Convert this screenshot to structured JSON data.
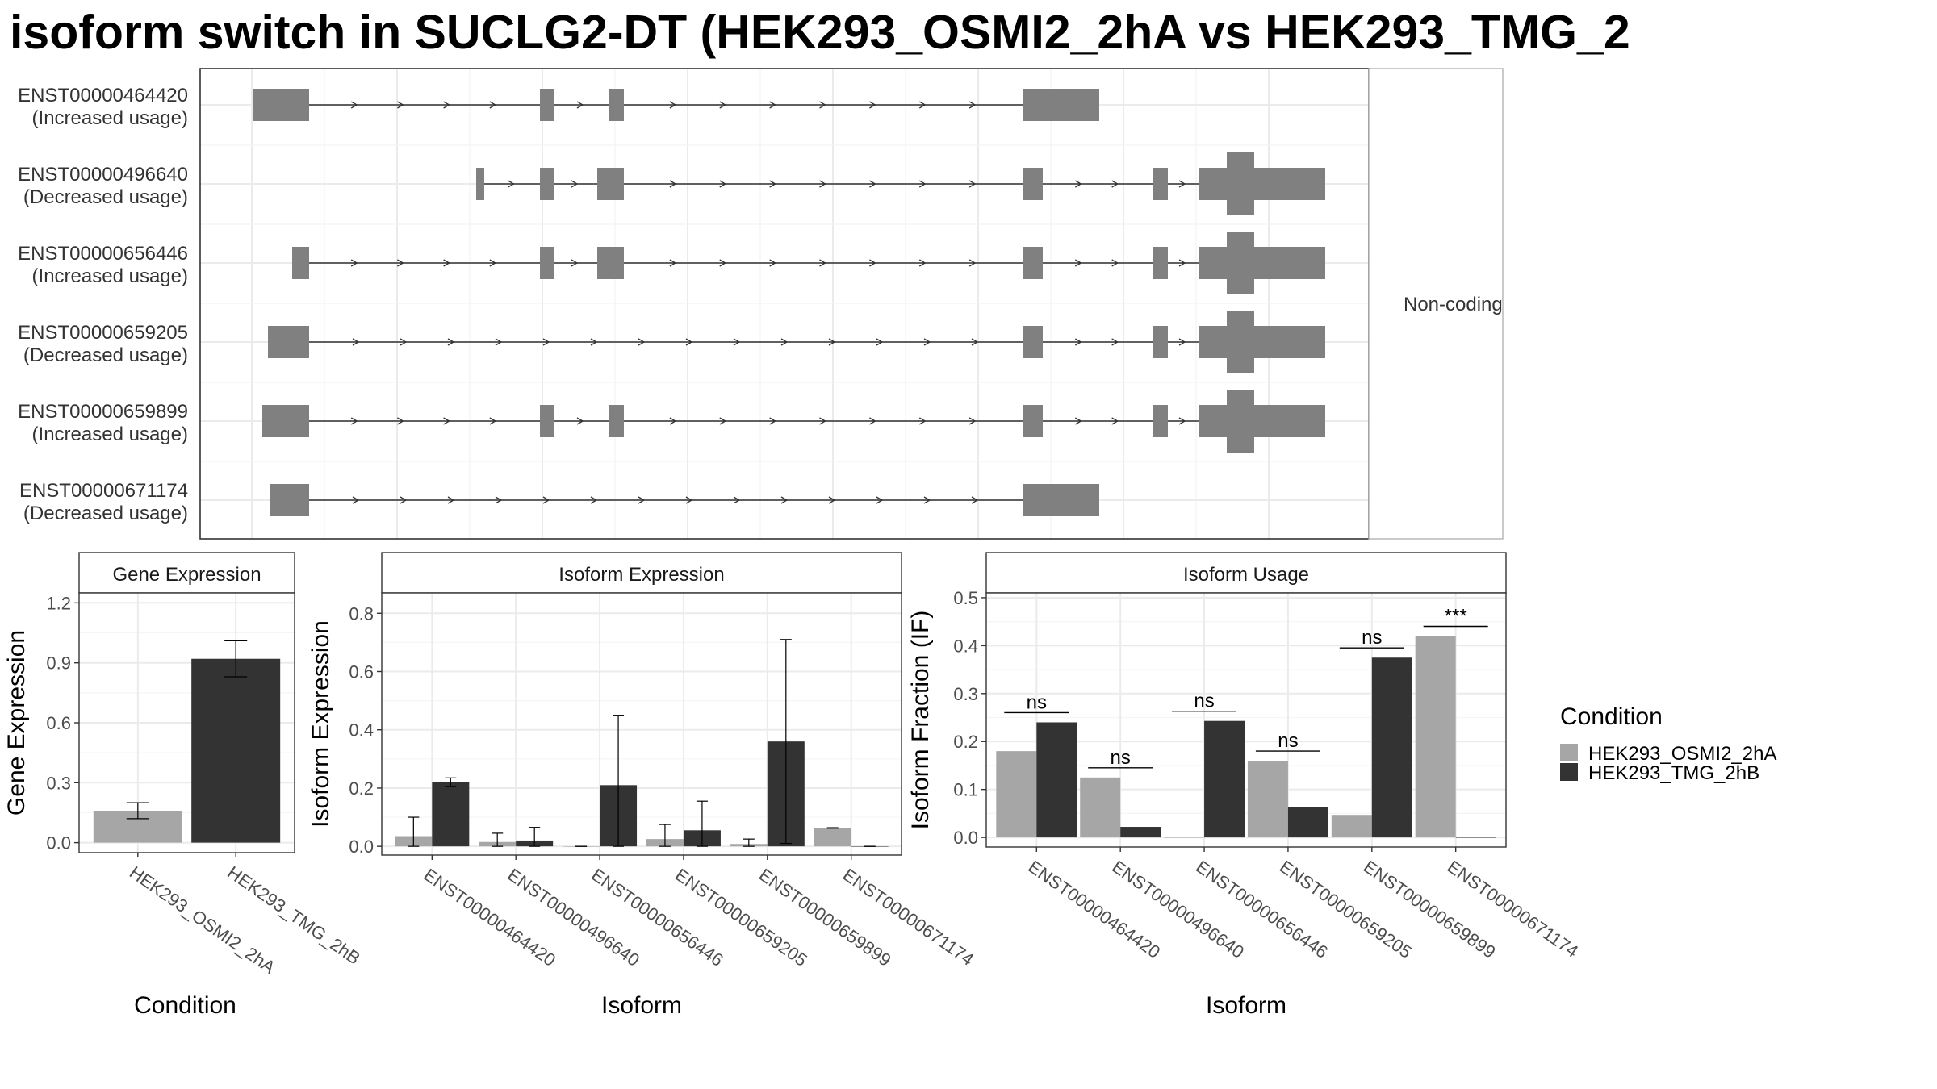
{
  "title": "isoform switch in SUCLG2-DT (HEK293_OSMI2_2hA vs HEK293_TMG_2",
  "colors": {
    "cond1": "#a6a6a6",
    "cond2": "#333333",
    "exon": "#808080"
  },
  "transcripts": {
    "strip_label": "Non-coding",
    "items": [
      {
        "id": "ENST00000464420",
        "usage": "(Increased usage)"
      },
      {
        "id": "ENST00000496640",
        "usage": "(Decreased usage)"
      },
      {
        "id": "ENST00000656446",
        "usage": "(Increased usage)"
      },
      {
        "id": "ENST00000659205",
        "usage": "(Decreased usage)"
      },
      {
        "id": "ENST00000659899",
        "usage": "(Increased usage)"
      },
      {
        "id": "ENST00000671174",
        "usage": "(Decreased usage)"
      }
    ]
  },
  "legend": {
    "title": "Condition",
    "items": [
      "HEK293_OSMI2_2hA",
      "HEK293_TMG_2hB"
    ]
  },
  "chart_data": [
    {
      "type": "bar",
      "title": "Gene Expression",
      "xlabel": "Condition",
      "ylabel": "Gene Expression",
      "categories": [
        "HEK293_OSMI2_2hA",
        "HEK293_TMG_2hB"
      ],
      "values": [
        0.16,
        0.92
      ],
      "error_low": [
        0.12,
        0.83
      ],
      "error_high": [
        0.2,
        1.01
      ],
      "ylim": [
        -0.05,
        1.25
      ],
      "yticks": [
        "0.0",
        "0.3",
        "0.6",
        "0.9",
        "1.2"
      ],
      "legend": "right",
      "grid": true
    },
    {
      "type": "bar",
      "title": "Isoform Expression",
      "xlabel": "Isoform",
      "ylabel": "Isoform Expression",
      "categories": [
        "ENST00000464420",
        "ENST00000496640",
        "ENST00000656446",
        "ENST00000659205",
        "ENST00000659899",
        "ENST00000671174"
      ],
      "series": [
        {
          "name": "HEK293_OSMI2_2hA",
          "values": [
            0.035,
            0.015,
            0.0,
            0.025,
            0.008,
            0.063
          ],
          "error_low": [
            0.0,
            0.0,
            0.0,
            0.0,
            0.0,
            0.062
          ],
          "error_high": [
            0.1,
            0.045,
            0.0,
            0.075,
            0.025,
            0.064
          ]
        },
        {
          "name": "HEK293_TMG_2hB",
          "values": [
            0.22,
            0.02,
            0.21,
            0.055,
            0.36,
            0.0
          ],
          "error_low": [
            0.205,
            0.0,
            0.0,
            0.0,
            0.01,
            0.0
          ],
          "error_high": [
            0.235,
            0.065,
            0.45,
            0.155,
            0.71,
            0.0
          ]
        }
      ],
      "ylim": [
        -0.03,
        0.87
      ],
      "yticks": [
        "0.0",
        "0.2",
        "0.4",
        "0.6",
        "0.8"
      ],
      "grid": true
    },
    {
      "type": "bar",
      "title": "Isoform Usage",
      "xlabel": "Isoform",
      "ylabel": "Isoform Fraction (IF)",
      "categories": [
        "ENST00000464420",
        "ENST00000496640",
        "ENST00000656446",
        "ENST00000659205",
        "ENST00000659899",
        "ENST00000671174"
      ],
      "series": [
        {
          "name": "HEK293_OSMI2_2hA",
          "values": [
            0.18,
            0.125,
            0.0,
            0.16,
            0.047,
            0.42
          ]
        },
        {
          "name": "HEK293_TMG_2hB",
          "values": [
            0.24,
            0.022,
            0.243,
            0.063,
            0.375,
            0.0
          ]
        }
      ],
      "annotations": [
        "ns",
        "ns",
        "ns",
        "ns",
        "ns",
        "***"
      ],
      "ylim": [
        -0.02,
        0.51
      ],
      "yticks": [
        "0.0",
        "0.1",
        "0.2",
        "0.3",
        "0.4",
        "0.5"
      ],
      "grid": true
    }
  ]
}
